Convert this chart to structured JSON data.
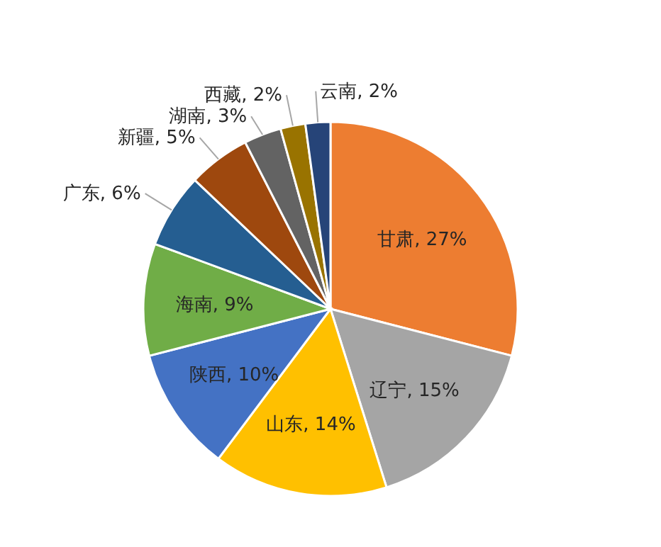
{
  "chart_data": {
    "type": "pie",
    "categories": [
      "甘肃",
      "辽宁",
      "山东",
      "陕西",
      "海南",
      "广东",
      "新疆",
      "湖南",
      "西藏",
      "云南"
    ],
    "values": [
      27,
      15,
      14,
      10,
      9,
      6,
      5,
      3,
      2,
      2
    ],
    "value_labels": [
      "27%",
      "15%",
      "14%",
      "10%",
      "9%",
      "6%",
      "5%",
      "3%",
      "2%",
      "2%"
    ],
    "colors": [
      "#ed7d31",
      "#a5a5a5",
      "#ffc000",
      "#4472c4",
      "#70ad47",
      "#255e91",
      "#9e480e",
      "#636363",
      "#997300",
      "#264478"
    ],
    "legend": false
  }
}
